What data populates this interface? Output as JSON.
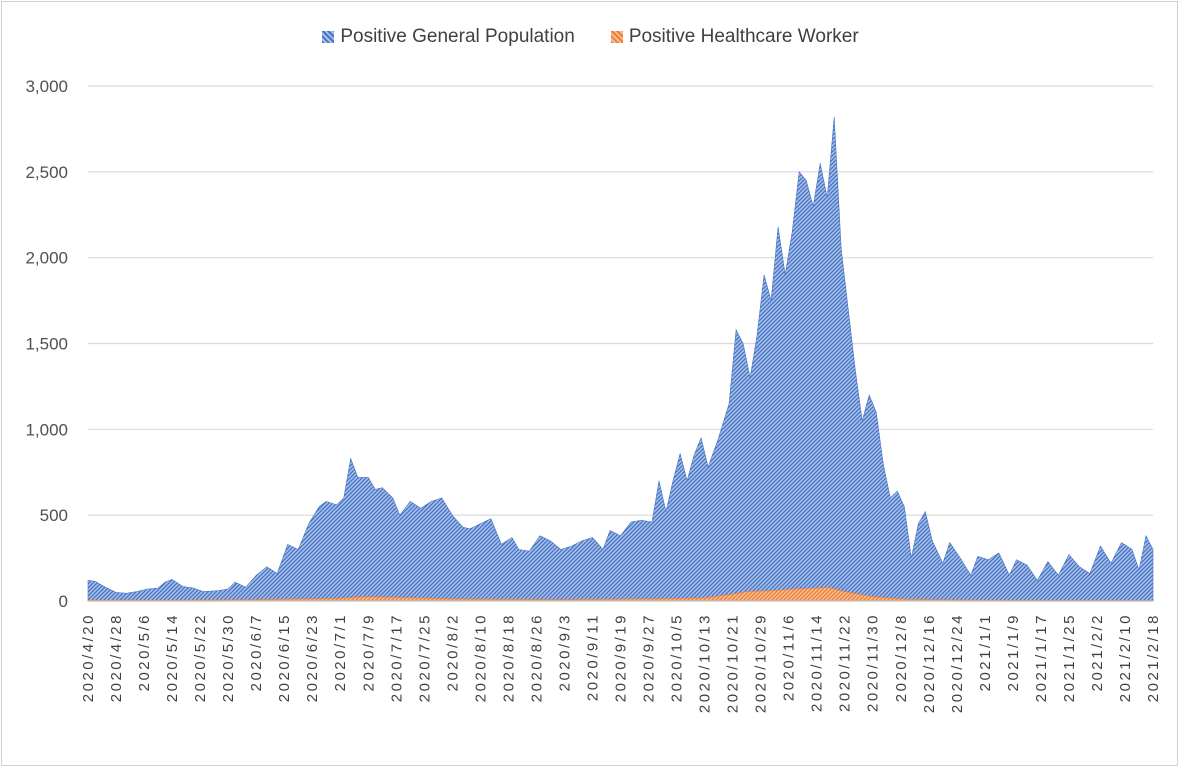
{
  "chart_data": {
    "type": "area",
    "title": "",
    "xlabel": "",
    "ylabel": "",
    "ylim": [
      0,
      3000
    ],
    "y_ticks": [
      "0",
      "500",
      "1,000",
      "1,500",
      "2,000",
      "2,500",
      "3,000"
    ],
    "y_tick_values": [
      0,
      500,
      1000,
      1500,
      2000,
      2500,
      3000
    ],
    "grid": true,
    "legend_position": "top",
    "x_start": "2020/4/20",
    "x_end": "2021/2/18",
    "x_tick_labels": [
      "2020/4/20",
      "2020/4/28",
      "2020/5/6",
      "2020/5/14",
      "2020/5/22",
      "2020/5/30",
      "2020/6/7",
      "2020/6/15",
      "2020/6/23",
      "2020/7/1",
      "2020/7/9",
      "2020/7/17",
      "2020/7/25",
      "2020/8/2",
      "2020/8/10",
      "2020/8/18",
      "2020/8/26",
      "2020/9/3",
      "2020/9/11",
      "2020/9/19",
      "2020/9/27",
      "2020/10/5",
      "2020/10/13",
      "2020/10/21",
      "2020/10/29",
      "2020/11/6",
      "2020/11/14",
      "2020/11/22",
      "2020/11/30",
      "2020/12/8",
      "2020/12/16",
      "2020/12/24",
      "2021/1/1",
      "2021/1/9",
      "2021/1/17",
      "2021/1/25",
      "2021/2/2",
      "2021/2/10",
      "2021/2/18"
    ],
    "series": [
      {
        "name": "Positive General Population",
        "color": "#4472c4",
        "points": [
          [
            "2020/4/20",
            120
          ],
          [
            "2020/4/22",
            115
          ],
          [
            "2020/4/25",
            80
          ],
          [
            "2020/4/28",
            50
          ],
          [
            "2020/5/1",
            45
          ],
          [
            "2020/5/4",
            55
          ],
          [
            "2020/5/7",
            70
          ],
          [
            "2020/5/10",
            75
          ],
          [
            "2020/5/12",
            110
          ],
          [
            "2020/5/14",
            125
          ],
          [
            "2020/5/17",
            85
          ],
          [
            "2020/5/20",
            75
          ],
          [
            "2020/5/23",
            55
          ],
          [
            "2020/5/27",
            60
          ],
          [
            "2020/5/30",
            70
          ],
          [
            "2020/6/1",
            110
          ],
          [
            "2020/6/4",
            80
          ],
          [
            "2020/6/7",
            150
          ],
          [
            "2020/6/10",
            200
          ],
          [
            "2020/6/13",
            160
          ],
          [
            "2020/6/16",
            330
          ],
          [
            "2020/6/19",
            300
          ],
          [
            "2020/6/22",
            450
          ],
          [
            "2020/6/25",
            550
          ],
          [
            "2020/6/27",
            580
          ],
          [
            "2020/6/30",
            560
          ],
          [
            "2020/7/2",
            600
          ],
          [
            "2020/7/4",
            830
          ],
          [
            "2020/7/6",
            720
          ],
          [
            "2020/7/9",
            720
          ],
          [
            "2020/7/11",
            650
          ],
          [
            "2020/7/13",
            660
          ],
          [
            "2020/7/16",
            600
          ],
          [
            "2020/7/18",
            500
          ],
          [
            "2020/7/21",
            580
          ],
          [
            "2020/7/24",
            540
          ],
          [
            "2020/7/27",
            580
          ],
          [
            "2020/7/30",
            600
          ],
          [
            "2020/8/2",
            500
          ],
          [
            "2020/8/5",
            430
          ],
          [
            "2020/8/7",
            420
          ],
          [
            "2020/8/10",
            450
          ],
          [
            "2020/8/13",
            480
          ],
          [
            "2020/8/16",
            330
          ],
          [
            "2020/8/19",
            370
          ],
          [
            "2020/8/21",
            300
          ],
          [
            "2020/8/24",
            290
          ],
          [
            "2020/8/27",
            380
          ],
          [
            "2020/8/30",
            350
          ],
          [
            "2020/9/2",
            300
          ],
          [
            "2020/9/5",
            320
          ],
          [
            "2020/9/8",
            350
          ],
          [
            "2020/9/11",
            370
          ],
          [
            "2020/9/14",
            300
          ],
          [
            "2020/9/16",
            410
          ],
          [
            "2020/9/19",
            380
          ],
          [
            "2020/9/22",
            460
          ],
          [
            "2020/9/25",
            470
          ],
          [
            "2020/9/28",
            460
          ],
          [
            "2020/9/30",
            700
          ],
          [
            "2020/10/2",
            520
          ],
          [
            "2020/10/4",
            700
          ],
          [
            "2020/10/6",
            860
          ],
          [
            "2020/10/8",
            700
          ],
          [
            "2020/10/10",
            850
          ],
          [
            "2020/10/12",
            950
          ],
          [
            "2020/10/14",
            780
          ],
          [
            "2020/10/17",
            950
          ],
          [
            "2020/10/20",
            1150
          ],
          [
            "2020/10/22",
            1580
          ],
          [
            "2020/10/24",
            1500
          ],
          [
            "2020/10/26",
            1300
          ],
          [
            "2020/10/28",
            1550
          ],
          [
            "2020/10/30",
            1900
          ],
          [
            "2020/11/1",
            1750
          ],
          [
            "2020/11/3",
            2180
          ],
          [
            "2020/11/5",
            1900
          ],
          [
            "2020/11/7",
            2150
          ],
          [
            "2020/11/9",
            2500
          ],
          [
            "2020/11/11",
            2450
          ],
          [
            "2020/11/13",
            2300
          ],
          [
            "2020/11/15",
            2550
          ],
          [
            "2020/11/17",
            2350
          ],
          [
            "2020/11/19",
            2820
          ],
          [
            "2020/11/21",
            2050
          ],
          [
            "2020/11/23",
            1700
          ],
          [
            "2020/11/25",
            1350
          ],
          [
            "2020/11/27",
            1050
          ],
          [
            "2020/11/29",
            1200
          ],
          [
            "2020/12/1",
            1100
          ],
          [
            "2020/12/3",
            800
          ],
          [
            "2020/12/5",
            600
          ],
          [
            "2020/12/7",
            640
          ],
          [
            "2020/12/9",
            550
          ],
          [
            "2020/12/11",
            250
          ],
          [
            "2020/12/13",
            450
          ],
          [
            "2020/12/15",
            520
          ],
          [
            "2020/12/17",
            350
          ],
          [
            "2020/12/20",
            220
          ],
          [
            "2020/12/22",
            340
          ],
          [
            "2020/12/25",
            250
          ],
          [
            "2020/12/28",
            150
          ],
          [
            "2020/12/30",
            260
          ],
          [
            "2021/1/2",
            240
          ],
          [
            "2021/1/5",
            280
          ],
          [
            "2021/1/8",
            150
          ],
          [
            "2021/1/10",
            240
          ],
          [
            "2021/1/13",
            210
          ],
          [
            "2021/1/16",
            120
          ],
          [
            "2021/1/19",
            230
          ],
          [
            "2021/1/22",
            150
          ],
          [
            "2021/1/25",
            270
          ],
          [
            "2021/1/28",
            200
          ],
          [
            "2021/1/31",
            160
          ],
          [
            "2021/2/3",
            320
          ],
          [
            "2021/2/6",
            220
          ],
          [
            "2021/2/9",
            340
          ],
          [
            "2021/2/12",
            300
          ],
          [
            "2021/2/14",
            180
          ],
          [
            "2021/2/16",
            380
          ],
          [
            "2021/2/18",
            300
          ]
        ]
      },
      {
        "name": "Positive Healthcare Worker",
        "color": "#ed7d31",
        "points": [
          [
            "2020/4/20",
            5
          ],
          [
            "2020/5/14",
            5
          ],
          [
            "2020/6/7",
            8
          ],
          [
            "2020/6/30",
            15
          ],
          [
            "2020/7/8",
            25
          ],
          [
            "2020/7/20",
            20
          ],
          [
            "2020/8/2",
            12
          ],
          [
            "2020/9/1",
            8
          ],
          [
            "2020/9/27",
            12
          ],
          [
            "2020/10/13",
            18
          ],
          [
            "2020/10/21",
            40
          ],
          [
            "2020/10/25",
            55
          ],
          [
            "2020/11/1",
            60
          ],
          [
            "2020/11/8",
            70
          ],
          [
            "2020/11/14",
            75
          ],
          [
            "2020/11/17",
            80
          ],
          [
            "2020/11/22",
            55
          ],
          [
            "2020/11/30",
            25
          ],
          [
            "2020/12/10",
            10
          ],
          [
            "2021/1/1",
            5
          ],
          [
            "2021/2/18",
            3
          ]
        ]
      }
    ]
  }
}
